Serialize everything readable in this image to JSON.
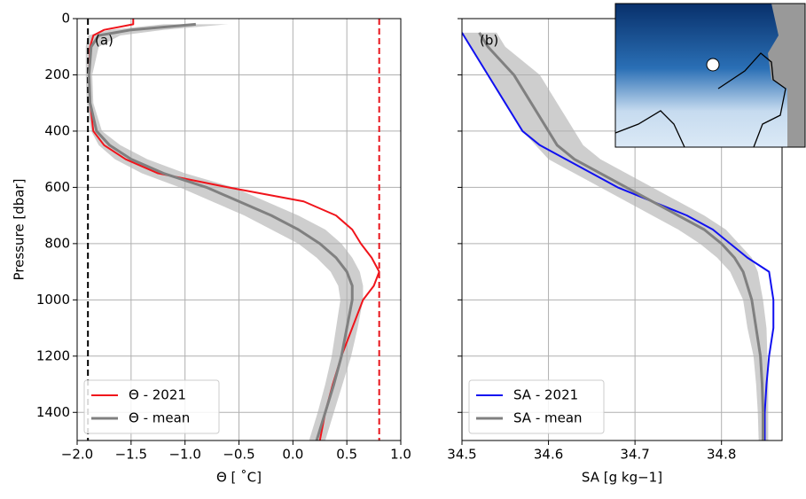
{
  "chart_data": [
    {
      "type": "line",
      "panel_label": "(a)",
      "xlabel": "Θ [ ˚C]",
      "ylabel": "Pressure [dbar]",
      "xlim": [
        -2,
        1
      ],
      "ylim": [
        1500,
        0
      ],
      "xticks": [
        {
          "value": -2,
          "label": "−2.0"
        },
        {
          "value": -1.5,
          "label": "−1.5"
        },
        {
          "value": -1,
          "label": "−1.0"
        },
        {
          "value": -0.5,
          "label": "−0.5"
        },
        {
          "value": 0,
          "label": "0.0"
        },
        0.5,
        {
          "value": 1,
          "label": "1.0"
        }
      ],
      "yticks": [
        0,
        200,
        400,
        600,
        800,
        1000,
        1200,
        1400
      ],
      "grid": true,
      "legend": "lower left",
      "y": [
        0,
        20,
        40,
        60,
        100,
        200,
        300,
        400,
        450,
        500,
        550,
        600,
        650,
        700,
        750,
        800,
        850,
        900,
        950,
        1000,
        1100,
        1200,
        1300,
        1400,
        1500
      ],
      "band": {
        "color": "#bdbdbd",
        "lower": [
          null,
          -1.2,
          -1.7,
          -1.9,
          -1.92,
          -1.92,
          -1.91,
          -1.87,
          -1.8,
          -1.65,
          -1.4,
          -1.05,
          -0.75,
          -0.45,
          -0.2,
          0.05,
          0.22,
          0.35,
          0.42,
          0.44,
          0.4,
          0.36,
          0.3,
          0.23,
          0.15
        ],
        "upper": [
          null,
          -0.6,
          -1.2,
          -1.6,
          -1.8,
          -1.86,
          -1.85,
          -1.77,
          -1.6,
          -1.35,
          -1.0,
          -0.55,
          -0.25,
          0.05,
          0.3,
          0.45,
          0.55,
          0.62,
          0.65,
          0.65,
          0.6,
          0.54,
          0.46,
          0.38,
          0.3
        ]
      },
      "vlines": [
        {
          "value": -1.9,
          "color": "#000000"
        },
        {
          "value": 0.8,
          "color": "#e8141b"
        }
      ],
      "series": [
        {
          "name": "Θ - 2021",
          "color": "#f0141b",
          "width": 2,
          "values": [
            -1.48,
            -1.48,
            -1.75,
            -1.85,
            -1.88,
            -1.89,
            -1.88,
            -1.85,
            -1.75,
            -1.55,
            -1.25,
            -0.6,
            0.1,
            0.4,
            0.55,
            0.63,
            0.73,
            0.8,
            0.75,
            0.65,
            0.55,
            0.45,
            0.37,
            0.3,
            0.25
          ]
        },
        {
          "name": "Θ - mean",
          "color": "#808080",
          "width": 3,
          "values": [
            null,
            -0.9,
            -1.5,
            -1.8,
            -1.87,
            -1.89,
            -1.88,
            -1.82,
            -1.7,
            -1.5,
            -1.2,
            -0.8,
            -0.5,
            -0.2,
            0.05,
            0.25,
            0.4,
            0.5,
            0.55,
            0.55,
            0.5,
            0.45,
            0.38,
            0.3,
            0.22
          ]
        }
      ]
    },
    {
      "type": "line",
      "panel_label": "(b)",
      "xlabel": "SA [g kg−1]",
      "xlim": [
        34.5,
        34.87
      ],
      "ylim": [
        1500,
        0
      ],
      "xticks": [
        34.5,
        34.6,
        34.7,
        34.8
      ],
      "yticks": [
        0,
        200,
        400,
        600,
        800,
        1000,
        1200,
        1400
      ],
      "grid": true,
      "legend": "lower left",
      "y": [
        50,
        100,
        200,
        300,
        400,
        450,
        500,
        550,
        600,
        650,
        700,
        750,
        800,
        850,
        900,
        1000,
        1100,
        1200,
        1300,
        1400,
        1500
      ],
      "band": {
        "color": "#bdbdbd",
        "lower": [
          34.5,
          34.51,
          34.53,
          34.55,
          34.57,
          34.585,
          34.6,
          34.63,
          34.66,
          34.69,
          34.72,
          34.75,
          34.775,
          34.795,
          34.81,
          34.825,
          34.83,
          34.837,
          34.84,
          34.842,
          34.843
        ],
        "upper": [
          34.54,
          34.55,
          34.59,
          34.61,
          34.63,
          34.64,
          34.66,
          34.69,
          34.72,
          34.75,
          34.78,
          34.805,
          34.82,
          34.835,
          34.842,
          34.848,
          34.852,
          34.853,
          34.854,
          34.854,
          34.854
        ]
      },
      "vlines": [],
      "series": [
        {
          "name": "SA - 2021",
          "color": "#1010f0",
          "width": 2,
          "values": [
            34.5,
            34.51,
            34.53,
            34.55,
            34.57,
            34.59,
            34.62,
            34.65,
            34.68,
            34.72,
            34.76,
            34.79,
            34.81,
            34.83,
            34.855,
            34.86,
            34.86,
            34.855,
            34.852,
            34.85,
            34.85
          ]
        },
        {
          "name": "SA - mean",
          "color": "#808080",
          "width": 3,
          "values": [
            34.52,
            34.53,
            34.56,
            34.58,
            34.6,
            34.61,
            34.63,
            34.66,
            34.69,
            34.72,
            34.75,
            34.78,
            34.8,
            34.815,
            34.825,
            34.835,
            34.84,
            34.845,
            34.847,
            34.848,
            34.848
          ]
        }
      ]
    }
  ]
}
